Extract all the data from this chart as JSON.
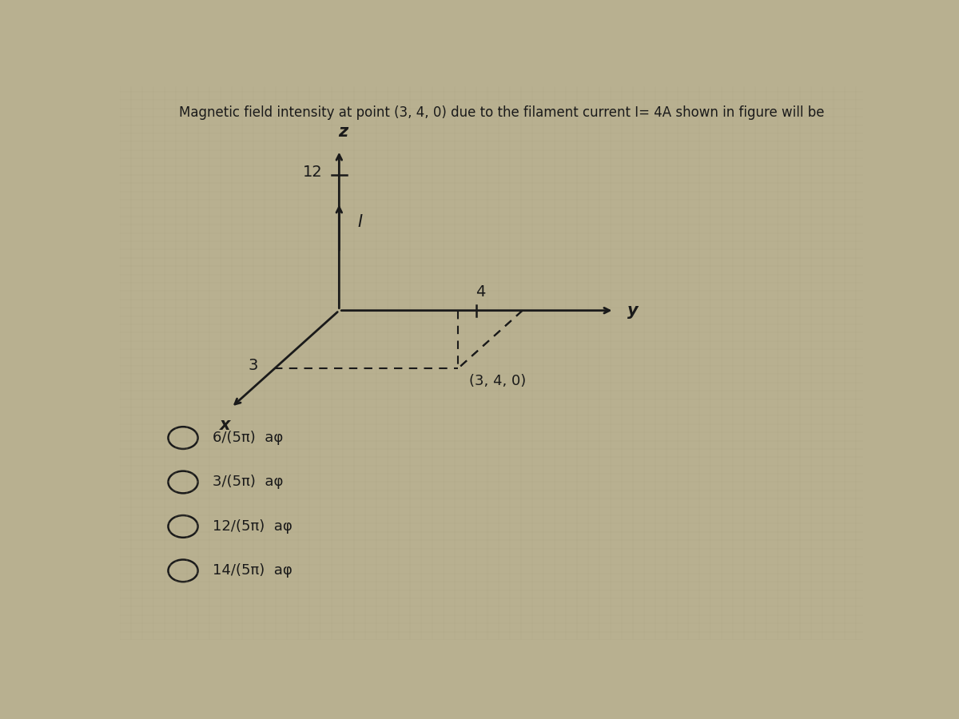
{
  "title": "Magnetic field intensity at point (3, 4, 0) due to the filament current I= 4A shown in figure will be",
  "title_fontsize": 12,
  "bg_color": "#b8b090",
  "text_color": "#1a1a1a",
  "choices": [
    "6/(5π)  aφ",
    "3/(5π)  aφ",
    "12/(5π)  aφ",
    "14/(5π)  aφ"
  ],
  "z_label": "z",
  "y_label": "y",
  "x_label": "x",
  "current_label": "I",
  "z12_label": "12",
  "y4_label": "4",
  "x3_label": "3",
  "point_label": "(3, 4, 0)"
}
